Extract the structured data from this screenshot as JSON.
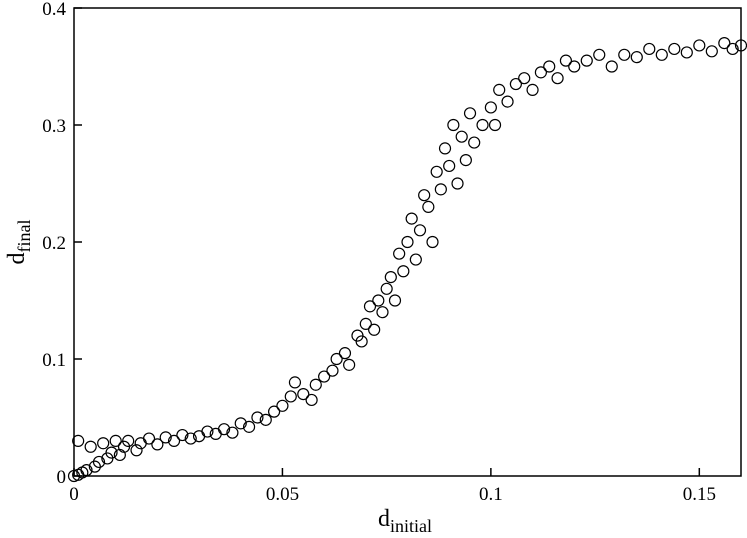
{
  "chart_data": {
    "type": "scatter",
    "xlabel": "d",
    "xlabel_sub": "initial",
    "ylabel": "d",
    "ylabel_sub": "final",
    "xlim": [
      0,
      0.16
    ],
    "xticks": [
      0,
      0.05,
      0.1,
      0.15
    ],
    "ylim": [
      0,
      0.4
    ],
    "yticks": [
      0,
      0.1,
      0.2,
      0.3,
      0.4
    ],
    "grid": false,
    "series": [
      {
        "color": "#000000",
        "x": [
          0,
          0.001,
          0.002,
          0.003,
          0.001,
          0.004,
          0.005,
          0.006,
          0.007,
          0.008,
          0.009,
          0.01,
          0.011,
          0.012,
          0.013,
          0.015,
          0.016,
          0.018,
          0.02,
          0.022,
          0.024,
          0.026,
          0.028,
          0.03,
          0.032,
          0.034,
          0.036,
          0.038,
          0.04,
          0.042,
          0.044,
          0.046,
          0.048,
          0.05,
          0.052,
          0.053,
          0.055,
          0.057,
          0.058,
          0.06,
          0.062,
          0.063,
          0.065,
          0.066,
          0.068,
          0.069,
          0.07,
          0.071,
          0.072,
          0.073,
          0.074,
          0.075,
          0.076,
          0.077,
          0.078,
          0.079,
          0.08,
          0.081,
          0.082,
          0.083,
          0.084,
          0.085,
          0.086,
          0.087,
          0.088,
          0.089,
          0.09,
          0.091,
          0.092,
          0.093,
          0.094,
          0.095,
          0.096,
          0.098,
          0.1,
          0.101,
          0.102,
          0.104,
          0.106,
          0.108,
          0.11,
          0.112,
          0.114,
          0.116,
          0.118,
          0.12,
          0.123,
          0.126,
          0.129,
          0.132,
          0.135,
          0.138,
          0.141,
          0.144,
          0.147,
          0.15,
          0.153,
          0.156,
          0.158,
          0.16
        ],
        "values": [
          0,
          0.001,
          0.003,
          0.005,
          0.03,
          0.025,
          0.008,
          0.012,
          0.028,
          0.015,
          0.02,
          0.03,
          0.018,
          0.025,
          0.03,
          0.022,
          0.028,
          0.032,
          0.027,
          0.033,
          0.03,
          0.035,
          0.032,
          0.034,
          0.038,
          0.036,
          0.04,
          0.037,
          0.045,
          0.042,
          0.05,
          0.048,
          0.055,
          0.06,
          0.068,
          0.08,
          0.07,
          0.065,
          0.078,
          0.085,
          0.09,
          0.1,
          0.105,
          0.095,
          0.12,
          0.115,
          0.13,
          0.145,
          0.125,
          0.15,
          0.14,
          0.16,
          0.17,
          0.15,
          0.19,
          0.175,
          0.2,
          0.22,
          0.185,
          0.21,
          0.24,
          0.23,
          0.2,
          0.26,
          0.245,
          0.28,
          0.265,
          0.3,
          0.25,
          0.29,
          0.27,
          0.31,
          0.285,
          0.3,
          0.315,
          0.3,
          0.33,
          0.32,
          0.335,
          0.34,
          0.33,
          0.345,
          0.35,
          0.34,
          0.355,
          0.35,
          0.355,
          0.36,
          0.35,
          0.36,
          0.358,
          0.365,
          0.36,
          0.365,
          0.362,
          0.368,
          0.363,
          0.37,
          0.365,
          0.368
        ]
      }
    ]
  }
}
